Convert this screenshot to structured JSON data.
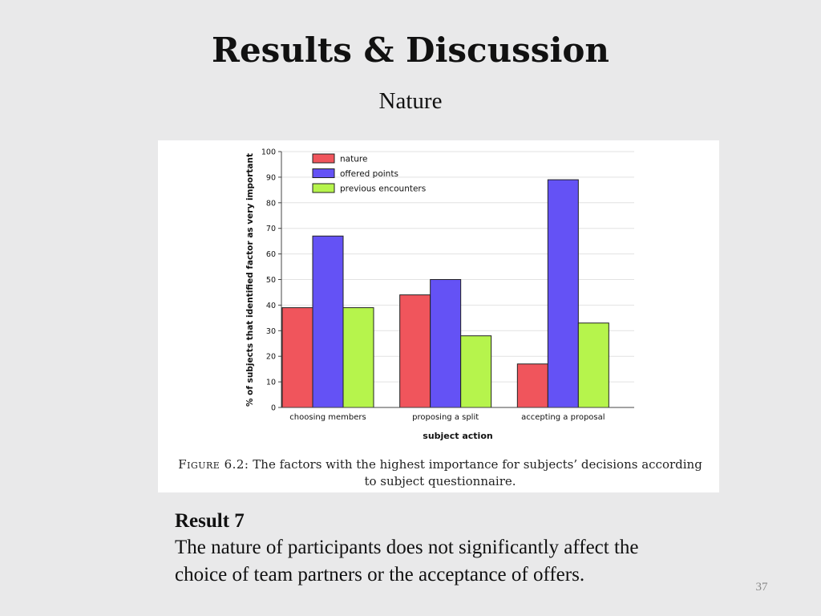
{
  "slide": {
    "title": "Results & Discussion",
    "subtitle": "Nature",
    "page_number": "37"
  },
  "figure": {
    "caption_label": "Figure 6.2:",
    "caption_text": "The factors with the highest importance for subjects’ decisions according to subject questionnaire."
  },
  "result": {
    "title": "Result 7",
    "text_line1": "The nature of participants does not significantly affect the",
    "text_line2": "choice of team partners or the acceptance of offers."
  },
  "chart_data": {
    "type": "bar",
    "categories": [
      "choosing members",
      "proposing a split",
      "accepting a proposal"
    ],
    "series": [
      {
        "name": "nature",
        "color": "#f0555c",
        "values": [
          39,
          44,
          17
        ]
      },
      {
        "name": "offered points",
        "color": "#6452f5",
        "values": [
          67,
          50,
          89
        ]
      },
      {
        "name": "previous encounters",
        "color": "#b6f44c",
        "values": [
          39,
          28,
          33
        ]
      }
    ],
    "xlabel": "subject action",
    "ylabel": "% of subjects that identified factor as very important",
    "ylim": [
      0,
      100
    ],
    "yticks": [
      0,
      10,
      20,
      30,
      40,
      50,
      60,
      70,
      80,
      90,
      100
    ],
    "grid": true,
    "legend_position": "top-left"
  }
}
